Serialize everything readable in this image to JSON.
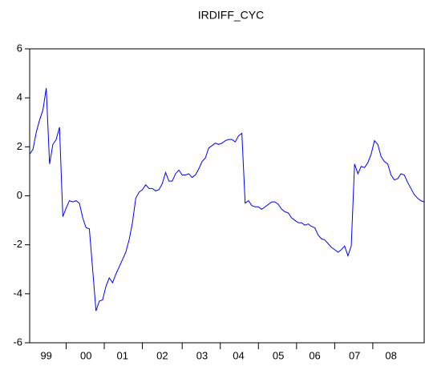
{
  "chart_data": {
    "type": "line",
    "title": "IRDIFF_CYC",
    "categories": [
      null,
      null,
      null,
      null,
      null,
      "99",
      null,
      null,
      null,
      null,
      null,
      null,
      null,
      null,
      null,
      null,
      null,
      "00",
      null,
      null,
      null,
      null,
      null,
      null,
      null,
      null,
      null,
      null,
      "01",
      null,
      null,
      null,
      null,
      null,
      null,
      null,
      null,
      null,
      null,
      null,
      "02",
      null,
      null,
      null,
      null,
      null,
      null,
      null,
      null,
      null,
      null,
      null,
      "03",
      null,
      null,
      null,
      null,
      null,
      null,
      null,
      null,
      null,
      null,
      "04",
      null,
      null,
      null,
      null,
      null,
      null,
      null,
      null,
      null,
      null,
      null,
      "05",
      null,
      null,
      null,
      null,
      null,
      null,
      null,
      null,
      null,
      null,
      "06",
      null,
      null,
      null,
      null,
      null,
      null,
      null,
      null,
      null,
      null,
      null,
      "07",
      null,
      null,
      null,
      null,
      null,
      null,
      null,
      null,
      null,
      null,
      "08",
      null,
      null,
      null,
      null,
      null,
      null,
      null,
      null,
      null,
      null
    ],
    "values": [
      1.7,
      1.9,
      2.6,
      3.1,
      3.5,
      4.4,
      1.3,
      2.1,
      2.3,
      2.8,
      -0.85,
      -0.5,
      -0.2,
      -0.25,
      -0.2,
      -0.3,
      -0.9,
      -1.3,
      -1.35,
      -3.0,
      -4.7,
      -4.3,
      -4.25,
      -3.7,
      -3.35,
      -3.55,
      -3.2,
      -2.9,
      -2.6,
      -2.3,
      -1.8,
      -1.1,
      -0.1,
      0.15,
      0.25,
      0.45,
      0.3,
      0.3,
      0.2,
      0.25,
      0.5,
      0.95,
      0.6,
      0.6,
      0.9,
      1.05,
      0.85,
      0.85,
      0.9,
      0.75,
      0.85,
      1.1,
      1.4,
      1.55,
      1.95,
      2.05,
      2.15,
      2.1,
      2.15,
      2.25,
      2.3,
      2.3,
      2.2,
      2.45,
      2.55,
      -0.3,
      -0.2,
      -0.4,
      -0.45,
      -0.45,
      -0.55,
      -0.45,
      -0.35,
      -0.25,
      -0.25,
      -0.35,
      -0.55,
      -0.65,
      -0.7,
      -0.9,
      -1.0,
      -1.1,
      -1.1,
      -1.2,
      -1.15,
      -1.25,
      -1.3,
      -1.6,
      -1.75,
      -1.8,
      -1.95,
      -2.1,
      -2.2,
      -2.3,
      -2.2,
      -2.05,
      -2.45,
      -2.05,
      1.3,
      0.9,
      1.2,
      1.15,
      1.35,
      1.7,
      2.25,
      2.1,
      1.6,
      1.4,
      1.3,
      0.85,
      0.65,
      0.7,
      0.9,
      0.85,
      0.55,
      0.3,
      0.05,
      -0.1,
      -0.2,
      -0.25
    ],
    "color": "#0000ff",
    "ylim": [
      -6,
      6
    ],
    "yticks": [
      -6,
      -4,
      -2,
      0,
      2,
      4,
      6
    ]
  }
}
